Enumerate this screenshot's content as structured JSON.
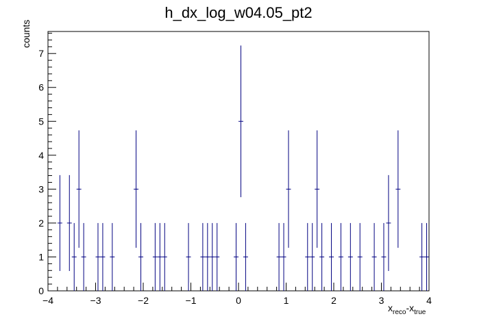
{
  "chart_data": {
    "type": "histogram",
    "title": "h_dx_log_w04.05_pt2",
    "xlabel_main": "x",
    "xlabel_sub1": "reco",
    "xlabel_dash": "-x",
    "xlabel_sub2": "true",
    "ylabel": "counts",
    "xlim": [
      -4,
      4
    ],
    "ylim": [
      0,
      7.65
    ],
    "bin_width": 0.1,
    "xticks": [
      -4,
      -3,
      -2,
      -1,
      0,
      1,
      2,
      3,
      4
    ],
    "xtick_labels": [
      "−4",
      "−3",
      "−2",
      "−1",
      "0",
      "1",
      "2",
      "3",
      "4"
    ],
    "yticks": [
      0,
      1,
      2,
      3,
      4,
      5,
      6,
      7
    ],
    "ytick_labels": [
      "0",
      "1",
      "2",
      "3",
      "4",
      "5",
      "6",
      "7"
    ],
    "series_color": "#000080",
    "bins": [
      {
        "x": -3.75,
        "y": 2
      },
      {
        "x": -3.55,
        "y": 2
      },
      {
        "x": -3.45,
        "y": 1
      },
      {
        "x": -3.35,
        "y": 3
      },
      {
        "x": -3.25,
        "y": 1
      },
      {
        "x": -2.95,
        "y": 1
      },
      {
        "x": -2.85,
        "y": 1
      },
      {
        "x": -2.65,
        "y": 1
      },
      {
        "x": -2.15,
        "y": 3
      },
      {
        "x": -2.05,
        "y": 1
      },
      {
        "x": -1.75,
        "y": 1
      },
      {
        "x": -1.65,
        "y": 1
      },
      {
        "x": -1.55,
        "y": 1
      },
      {
        "x": -1.05,
        "y": 1
      },
      {
        "x": -0.75,
        "y": 1
      },
      {
        "x": -0.65,
        "y": 1
      },
      {
        "x": -0.55,
        "y": 1
      },
      {
        "x": -0.45,
        "y": 1
      },
      {
        "x": -0.05,
        "y": 1
      },
      {
        "x": 0.05,
        "y": 5
      },
      {
        "x": 0.15,
        "y": 1
      },
      {
        "x": 0.85,
        "y": 1
      },
      {
        "x": 0.95,
        "y": 1
      },
      {
        "x": 1.05,
        "y": 3
      },
      {
        "x": 1.45,
        "y": 1
      },
      {
        "x": 1.55,
        "y": 1
      },
      {
        "x": 1.65,
        "y": 3
      },
      {
        "x": 1.75,
        "y": 1
      },
      {
        "x": 1.95,
        "y": 1
      },
      {
        "x": 2.15,
        "y": 1
      },
      {
        "x": 2.35,
        "y": 1
      },
      {
        "x": 2.55,
        "y": 1
      },
      {
        "x": 2.85,
        "y": 1
      },
      {
        "x": 3.05,
        "y": 1
      },
      {
        "x": 3.15,
        "y": 2
      },
      {
        "x": 3.35,
        "y": 3
      },
      {
        "x": 3.85,
        "y": 1
      },
      {
        "x": 3.95,
        "y": 1
      }
    ]
  }
}
